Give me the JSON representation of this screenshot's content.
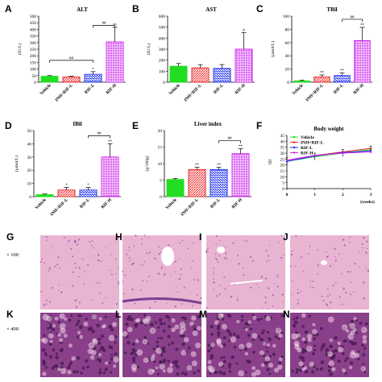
{
  "chart_data": [
    {
      "id": "A",
      "type": "bar",
      "title": "ALT",
      "ylabel": "(IU/L)",
      "ylim": [
        0,
        500
      ],
      "yticks": [
        0,
        50,
        100,
        150,
        200,
        250,
        300,
        350,
        400,
        450,
        500
      ],
      "categories": [
        "Vehicle",
        "INH+RIF-L",
        "RIF-L",
        "RIF-H"
      ],
      "values": [
        45,
        40,
        60,
        305
      ],
      "errors": [
        5,
        5,
        20,
        110
      ],
      "marks": [
        "",
        "",
        "*",
        "**"
      ],
      "brackets": [
        {
          "from": 0,
          "to": 2,
          "label": "##"
        },
        {
          "from": 2,
          "to": 3,
          "label": "##"
        }
      ]
    },
    {
      "id": "B",
      "type": "bar",
      "title": "AST",
      "ylabel": "(IU/L)",
      "ylim": [
        0,
        600
      ],
      "yticks": [
        0,
        100,
        200,
        300,
        400,
        500,
        600
      ],
      "categories": [
        "Vehicle",
        "INH+RIF-L",
        "RIF-L",
        "RIF-H"
      ],
      "values": [
        145,
        130,
        125,
        300
      ],
      "errors": [
        25,
        30,
        35,
        150
      ],
      "marks": [
        "",
        "",
        "",
        "#"
      ],
      "brackets": []
    },
    {
      "id": "C",
      "type": "bar",
      "title": "TBil",
      "ylabel": "(μmol/L)",
      "ylim": [
        0,
        100
      ],
      "yticks": [
        0,
        20,
        40,
        60,
        80,
        100
      ],
      "categories": [
        "Vehicle",
        "INH+RIF-L",
        "RIF-L",
        "RIF-H"
      ],
      "values": [
        2,
        8,
        10,
        63
      ],
      "errors": [
        1,
        3,
        4,
        20
      ],
      "marks": [
        "",
        "**",
        "**",
        "**"
      ],
      "brackets": [
        {
          "from": 2,
          "to": 3,
          "label": "##"
        }
      ]
    },
    {
      "id": "D",
      "type": "bar",
      "title": "IBil",
      "ylabel": "(μmol/L)",
      "ylim": [
        0,
        50
      ],
      "yticks": [
        0,
        10,
        20,
        30,
        40,
        50
      ],
      "categories": [
        "Vehicle",
        "INH+RIF-L",
        "RIF-L",
        "RIF-H"
      ],
      "values": [
        1.5,
        5,
        5,
        30
      ],
      "errors": [
        0.5,
        2,
        2,
        10
      ],
      "marks": [
        "",
        "*",
        "*",
        "**"
      ],
      "brackets": [
        {
          "from": 2,
          "to": 3,
          "label": "##"
        }
      ]
    },
    {
      "id": "E",
      "type": "bar",
      "title": "Liver index",
      "ylabel": "(g/100g)",
      "ylim": [
        0,
        20
      ],
      "yticks": [
        0,
        5,
        10,
        15,
        20
      ],
      "categories": [
        "Vehicle",
        "INH+RIF-L",
        "RIF-L",
        "RIF-H"
      ],
      "values": [
        5.2,
        8.2,
        8.2,
        13
      ],
      "errors": [
        0.3,
        0.7,
        0.7,
        1.5
      ],
      "marks": [
        "",
        "**",
        "**",
        "**"
      ],
      "brackets": [
        {
          "from": 2,
          "to": 3,
          "label": "##"
        }
      ]
    },
    {
      "id": "F",
      "type": "line",
      "title": "Body weight",
      "ylabel": "(g)",
      "xlabel": "(weeks)",
      "xlim": [
        0,
        3
      ],
      "ylim": [
        0,
        45
      ],
      "xticks": [
        0,
        1,
        2,
        3
      ],
      "yticks": [
        0,
        5,
        10,
        15,
        20,
        25,
        30,
        35,
        40,
        45
      ],
      "x": [
        0,
        1,
        2,
        3
      ],
      "series": [
        {
          "name": "Vehicle",
          "values": [
            23,
            27,
            30,
            33
          ]
        },
        {
          "name": "INH+RIF-L",
          "values": [
            24,
            28,
            31,
            34
          ]
        },
        {
          "name": "RIF-L",
          "values": [
            23,
            27.5,
            30.5,
            32
          ]
        },
        {
          "name": "RIF-H",
          "values": [
            24,
            28,
            30,
            31
          ]
        }
      ]
    }
  ],
  "colors": {
    "vehicle": "#22dd22",
    "inh_rif_l": "#ee2222",
    "rif_l": "#2233ee",
    "rif_h": "#cc22ee",
    "he_pink": "#e6a6c8",
    "he_purple": "#8a3f8a"
  },
  "micrographs": {
    "panels": [
      {
        "id": "G",
        "row": 1,
        "col": 0
      },
      {
        "id": "H",
        "row": 1,
        "col": 1
      },
      {
        "id": "I",
        "row": 1,
        "col": 2
      },
      {
        "id": "J",
        "row": 1,
        "col": 3
      },
      {
        "id": "K",
        "row": 2,
        "col": 0
      },
      {
        "id": "L",
        "row": 2,
        "col": 1
      },
      {
        "id": "M",
        "row": 2,
        "col": 2
      },
      {
        "id": "N",
        "row": 2,
        "col": 3
      }
    ],
    "mag_row1": "× 100",
    "mag_row2": "× 400"
  }
}
